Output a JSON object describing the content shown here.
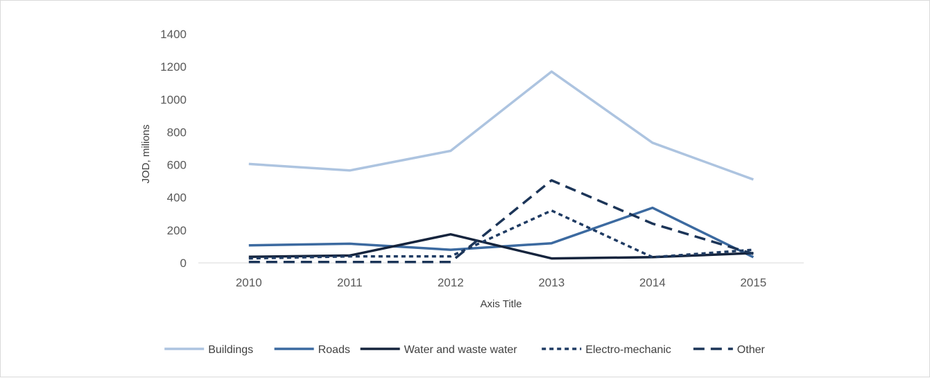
{
  "chart_data": {
    "type": "line",
    "title": "",
    "xlabel": "Axis Title",
    "ylabel": "JOD, milions",
    "categories": [
      "2010",
      "2011",
      "2012",
      "2013",
      "2014",
      "2015"
    ],
    "ylim": [
      0,
      1400
    ],
    "yticks": [
      0,
      200,
      400,
      600,
      800,
      1000,
      1200,
      1400
    ],
    "ytick_labels": [
      "0",
      "200",
      "400",
      "600",
      "800",
      "1000",
      "1200",
      "1400"
    ],
    "grid": false,
    "legend_position": "bottom",
    "series": [
      {
        "name": "Buildings",
        "values": [
          605,
          565,
          685,
          1170,
          735,
          510
        ],
        "color": "#adc4e0",
        "dash": "solid"
      },
      {
        "name": "Roads",
        "values": [
          107,
          117,
          80,
          120,
          337,
          35
        ],
        "color": "#3c6aa0",
        "dash": "solid"
      },
      {
        "name": "Water and waste water",
        "values": [
          37,
          45,
          175,
          27,
          35,
          60
        ],
        "color": "#15243d",
        "dash": "solid"
      },
      {
        "name": "Electro-mechanic",
        "values": [
          27,
          40,
          40,
          320,
          35,
          80
        ],
        "color": "#1f3b63",
        "dash": "short"
      },
      {
        "name": "Other",
        "values": [
          5,
          5,
          5,
          505,
          240,
          55
        ],
        "color": "#1c3558",
        "dash": "long"
      }
    ]
  }
}
